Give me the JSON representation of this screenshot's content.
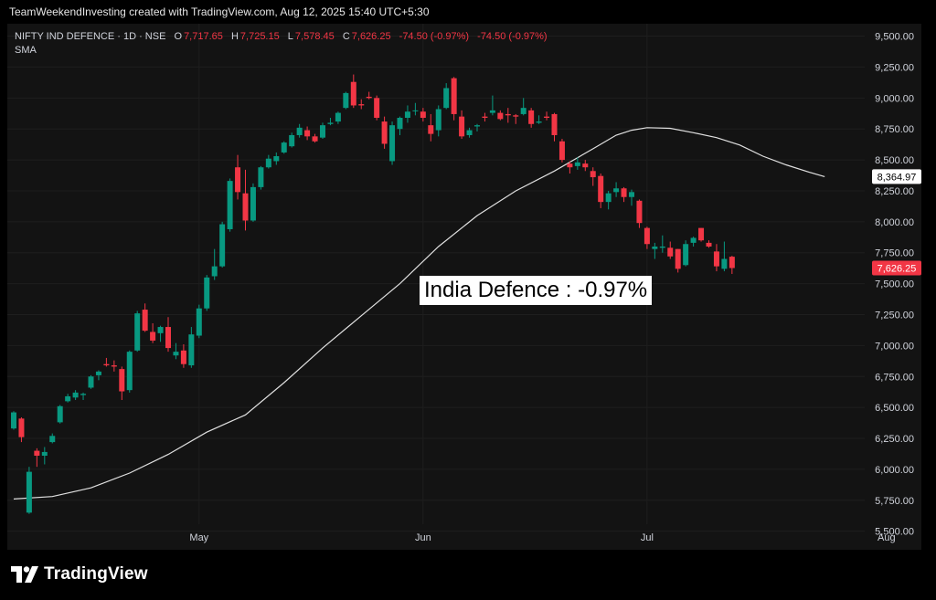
{
  "header": {
    "attribution": "TeamWeekendInvesting created with TradingView.com, Aug 12, 2025 15:40 UTC+5:30"
  },
  "legend": {
    "symbol": "NIFTY IND DEFENCE · 1D · NSE",
    "open_label": "O",
    "open": "7,717.65",
    "high_label": "H",
    "high": "7,725.15",
    "low_label": "L",
    "low": "7,578.45",
    "close_label": "C",
    "close": "7,626.25",
    "change": "-74.50 (-0.97%)",
    "change2": "-74.50 (-0.97%)",
    "indicator": "SMA"
  },
  "annotation": "India Defence : -0.97%",
  "footer": {
    "brand": "TradingView"
  },
  "colors": {
    "up": "#089981",
    "down": "#f23645",
    "sma": "#e0e0e0",
    "background": "#131313"
  },
  "chart_data": {
    "type": "candlestick",
    "y_axis": {
      "range": [
        5350,
        9600
      ],
      "ticks": [
        5500,
        5750,
        6000,
        6250,
        6500,
        6750,
        7000,
        7250,
        7500,
        7750,
        8000,
        8250,
        8500,
        8750,
        9000,
        9250,
        9500
      ],
      "tick_labels": [
        "5,500.00",
        "5,750.00",
        "6,000.00",
        "6,250.00",
        "6,500.00",
        "6,750.00",
        "7,000.00",
        "7,250.00",
        "7,500.00",
        "7,750.00",
        "8,000.00",
        "8,250.00",
        "8,500.00",
        "8,750.00",
        "9,000.00",
        "9,250.00",
        "9,500.00"
      ],
      "position": "right"
    },
    "x_axis": {
      "labels": [
        {
          "label": "May",
          "index": 24
        },
        {
          "label": "Jun",
          "index": 53
        },
        {
          "label": "Jul",
          "index": 82
        },
        {
          "label": "Aug",
          "index": 113
        }
      ]
    },
    "last_price_label": "7,626.25",
    "last_price": 7626.25,
    "sma_last_label": "8,364.97",
    "sma_last": 8364.97,
    "candles": [
      {
        "o": 6330,
        "h": 6470,
        "l": 6320,
        "c": 6460
      },
      {
        "o": 6410,
        "h": 6420,
        "l": 6220,
        "c": 6260
      },
      {
        "o": 5650,
        "h": 6020,
        "l": 5640,
        "c": 5980
      },
      {
        "o": 6150,
        "h": 6170,
        "l": 6020,
        "c": 6110
      },
      {
        "o": 6110,
        "h": 6180,
        "l": 6040,
        "c": 6140
      },
      {
        "o": 6220,
        "h": 6290,
        "l": 6210,
        "c": 6270
      },
      {
        "o": 6380,
        "h": 6520,
        "l": 6370,
        "c": 6510
      },
      {
        "o": 6550,
        "h": 6610,
        "l": 6540,
        "c": 6590
      },
      {
        "o": 6580,
        "h": 6640,
        "l": 6560,
        "c": 6620
      },
      {
        "o": 6600,
        "h": 6620,
        "l": 6560,
        "c": 6610
      },
      {
        "o": 6660,
        "h": 6760,
        "l": 6650,
        "c": 6750
      },
      {
        "o": 6760,
        "h": 6800,
        "l": 6720,
        "c": 6790
      },
      {
        "o": 6850,
        "h": 6900,
        "l": 6830,
        "c": 6840
      },
      {
        "o": 6840,
        "h": 6880,
        "l": 6790,
        "c": 6830
      },
      {
        "o": 6810,
        "h": 6830,
        "l": 6560,
        "c": 6630
      },
      {
        "o": 6640,
        "h": 6960,
        "l": 6620,
        "c": 6950
      },
      {
        "o": 6960,
        "h": 7280,
        "l": 6950,
        "c": 7260
      },
      {
        "o": 7290,
        "h": 7340,
        "l": 7110,
        "c": 7120
      },
      {
        "o": 7110,
        "h": 7180,
        "l": 7020,
        "c": 7040
      },
      {
        "o": 7100,
        "h": 7160,
        "l": 7030,
        "c": 7150
      },
      {
        "o": 7150,
        "h": 7230,
        "l": 6950,
        "c": 6980
      },
      {
        "o": 6920,
        "h": 7020,
        "l": 6890,
        "c": 6950
      },
      {
        "o": 6960,
        "h": 7010,
        "l": 6820,
        "c": 6850
      },
      {
        "o": 6840,
        "h": 7150,
        "l": 6820,
        "c": 7090
      },
      {
        "o": 7080,
        "h": 7330,
        "l": 7060,
        "c": 7300
      },
      {
        "o": 7300,
        "h": 7570,
        "l": 7280,
        "c": 7550
      },
      {
        "o": 7560,
        "h": 7780,
        "l": 7530,
        "c": 7640
      },
      {
        "o": 7640,
        "h": 8000,
        "l": 7630,
        "c": 7980
      },
      {
        "o": 7940,
        "h": 8350,
        "l": 7920,
        "c": 8330
      },
      {
        "o": 8440,
        "h": 8540,
        "l": 8180,
        "c": 8240
      },
      {
        "o": 8230,
        "h": 8420,
        "l": 7930,
        "c": 8010
      },
      {
        "o": 8010,
        "h": 8310,
        "l": 8000,
        "c": 8280
      },
      {
        "o": 8280,
        "h": 8450,
        "l": 8260,
        "c": 8440
      },
      {
        "o": 8440,
        "h": 8540,
        "l": 8430,
        "c": 8510
      },
      {
        "o": 8490,
        "h": 8560,
        "l": 8460,
        "c": 8530
      },
      {
        "o": 8560,
        "h": 8650,
        "l": 8550,
        "c": 8640
      },
      {
        "o": 8610,
        "h": 8720,
        "l": 8600,
        "c": 8700
      },
      {
        "o": 8700,
        "h": 8790,
        "l": 8680,
        "c": 8760
      },
      {
        "o": 8740,
        "h": 8770,
        "l": 8660,
        "c": 8690
      },
      {
        "o": 8690,
        "h": 8710,
        "l": 8640,
        "c": 8650
      },
      {
        "o": 8680,
        "h": 8800,
        "l": 8670,
        "c": 8780
      },
      {
        "o": 8790,
        "h": 8840,
        "l": 8780,
        "c": 8800
      },
      {
        "o": 8810,
        "h": 8890,
        "l": 8790,
        "c": 8880
      },
      {
        "o": 8920,
        "h": 9050,
        "l": 8910,
        "c": 9040
      },
      {
        "o": 9130,
        "h": 9190,
        "l": 8920,
        "c": 8940
      },
      {
        "o": 8950,
        "h": 8990,
        "l": 8910,
        "c": 8940
      },
      {
        "o": 9010,
        "h": 9050,
        "l": 8990,
        "c": 9000
      },
      {
        "o": 9000,
        "h": 9020,
        "l": 8820,
        "c": 8840
      },
      {
        "o": 8810,
        "h": 8850,
        "l": 8590,
        "c": 8630
      },
      {
        "o": 8490,
        "h": 8810,
        "l": 8460,
        "c": 8780
      },
      {
        "o": 8750,
        "h": 8850,
        "l": 8700,
        "c": 8840
      },
      {
        "o": 8840,
        "h": 8940,
        "l": 8800,
        "c": 8890
      },
      {
        "o": 8900,
        "h": 8960,
        "l": 8860,
        "c": 8900
      },
      {
        "o": 8890,
        "h": 8920,
        "l": 8810,
        "c": 8840
      },
      {
        "o": 8780,
        "h": 8870,
        "l": 8650,
        "c": 8710
      },
      {
        "o": 8740,
        "h": 8940,
        "l": 8690,
        "c": 8910
      },
      {
        "o": 8920,
        "h": 9120,
        "l": 8910,
        "c": 9080
      },
      {
        "o": 9160,
        "h": 9170,
        "l": 8820,
        "c": 8870
      },
      {
        "o": 8850,
        "h": 8900,
        "l": 8670,
        "c": 8690
      },
      {
        "o": 8700,
        "h": 8760,
        "l": 8680,
        "c": 8740
      },
      {
        "o": 8770,
        "h": 8790,
        "l": 8730,
        "c": 8780
      },
      {
        "o": 8850,
        "h": 8880,
        "l": 8810,
        "c": 8840
      },
      {
        "o": 8880,
        "h": 9020,
        "l": 8860,
        "c": 8900
      },
      {
        "o": 8880,
        "h": 8900,
        "l": 8820,
        "c": 8830
      },
      {
        "o": 8870,
        "h": 8920,
        "l": 8800,
        "c": 8860
      },
      {
        "o": 8860,
        "h": 8870,
        "l": 8790,
        "c": 8850
      },
      {
        "o": 8870,
        "h": 9000,
        "l": 8860,
        "c": 8920
      },
      {
        "o": 8900,
        "h": 8920,
        "l": 8760,
        "c": 8790
      },
      {
        "o": 8800,
        "h": 8860,
        "l": 8790,
        "c": 8810
      },
      {
        "o": 8850,
        "h": 8890,
        "l": 8820,
        "c": 8840
      },
      {
        "o": 8870,
        "h": 8880,
        "l": 8650,
        "c": 8700
      },
      {
        "o": 8650,
        "h": 8670,
        "l": 8480,
        "c": 8500
      },
      {
        "o": 8470,
        "h": 8490,
        "l": 8390,
        "c": 8440
      },
      {
        "o": 8450,
        "h": 8520,
        "l": 8420,
        "c": 8480
      },
      {
        "o": 8470,
        "h": 8500,
        "l": 8410,
        "c": 8440
      },
      {
        "o": 8410,
        "h": 8440,
        "l": 8290,
        "c": 8360
      },
      {
        "o": 8370,
        "h": 8390,
        "l": 8110,
        "c": 8160
      },
      {
        "o": 8160,
        "h": 8250,
        "l": 8100,
        "c": 8230
      },
      {
        "o": 8240,
        "h": 8320,
        "l": 8200,
        "c": 8270
      },
      {
        "o": 8270,
        "h": 8280,
        "l": 8160,
        "c": 8200
      },
      {
        "o": 8200,
        "h": 8260,
        "l": 8130,
        "c": 8240
      },
      {
        "o": 8170,
        "h": 8180,
        "l": 7950,
        "c": 7990
      },
      {
        "o": 7950,
        "h": 7960,
        "l": 7780,
        "c": 7820
      },
      {
        "o": 7780,
        "h": 7830,
        "l": 7700,
        "c": 7800
      },
      {
        "o": 7790,
        "h": 7890,
        "l": 7750,
        "c": 7800
      },
      {
        "o": 7790,
        "h": 7840,
        "l": 7700,
        "c": 7720
      },
      {
        "o": 7780,
        "h": 7780,
        "l": 7590,
        "c": 7620
      },
      {
        "o": 7650,
        "h": 7850,
        "l": 7640,
        "c": 7820
      },
      {
        "o": 7830,
        "h": 7880,
        "l": 7800,
        "c": 7870
      },
      {
        "o": 7950,
        "h": 7950,
        "l": 7840,
        "c": 7850
      },
      {
        "o": 7830,
        "h": 7850,
        "l": 7790,
        "c": 7800
      },
      {
        "o": 7760,
        "h": 7820,
        "l": 7600,
        "c": 7640
      },
      {
        "o": 7620,
        "h": 7840,
        "l": 7600,
        "c": 7700
      },
      {
        "o": 7717.65,
        "h": 7725.15,
        "l": 7578.45,
        "c": 7626.25
      }
    ],
    "sma": [
      [
        0,
        5760
      ],
      [
        5,
        5780
      ],
      [
        10,
        5850
      ],
      [
        15,
        5970
      ],
      [
        20,
        6120
      ],
      [
        25,
        6300
      ],
      [
        30,
        6440
      ],
      [
        35,
        6700
      ],
      [
        40,
        6980
      ],
      [
        45,
        7240
      ],
      [
        50,
        7500
      ],
      [
        55,
        7800
      ],
      [
        60,
        8050
      ],
      [
        65,
        8250
      ],
      [
        70,
        8410
      ],
      [
        75,
        8590
      ],
      [
        78,
        8700
      ],
      [
        80,
        8740
      ],
      [
        82,
        8760
      ],
      [
        85,
        8755
      ],
      [
        88,
        8720
      ],
      [
        91,
        8680
      ],
      [
        94,
        8620
      ],
      [
        97,
        8530
      ],
      [
        100,
        8460
      ],
      [
        103,
        8400
      ],
      [
        105,
        8364.97
      ]
    ]
  }
}
